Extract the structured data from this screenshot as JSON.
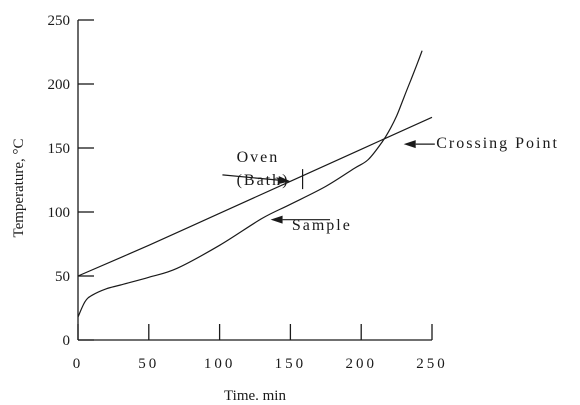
{
  "chart_data": {
    "type": "line",
    "title": "",
    "xlabel": "Time. min",
    "ylabel": "Temperature, °C",
    "xlim": [
      0,
      250
    ],
    "ylim": [
      0,
      250
    ],
    "xticks": [
      0,
      50,
      100,
      150,
      200,
      250
    ],
    "yticks": [
      0,
      50,
      100,
      150,
      200,
      250
    ],
    "grid": false,
    "series": [
      {
        "name": "Oven (Bath)",
        "x": [
          0,
          50,
          100,
          150,
          200,
          250
        ],
        "y": [
          50,
          74,
          99,
          124,
          149,
          174
        ]
      },
      {
        "name": "Sample",
        "x": [
          0,
          5,
          10,
          20,
          30,
          50,
          70,
          100,
          130,
          150,
          175,
          195,
          205,
          215,
          220,
          225,
          230,
          235,
          240,
          243
        ],
        "y": [
          18,
          30,
          35,
          40,
          43,
          49,
          56,
          74,
          95,
          106,
          120,
          134,
          141,
          155,
          164,
          175,
          189,
          203,
          217,
          226
        ]
      }
    ],
    "annotations": [
      {
        "text": "Oven",
        "tx": 112,
        "ty": 139,
        "target": [
          150,
          124
        ],
        "from": [
          102,
          129
        ]
      },
      {
        "text": "(Bath)",
        "tx": 112,
        "ty": 121
      },
      {
        "text": "Sample",
        "tx": 151,
        "ty": 86,
        "target": [
          136,
          94
        ],
        "from": [
          178,
          94
        ]
      },
      {
        "text": "Crossing Point",
        "tx": 253,
        "ty": 150,
        "target": [
          230,
          153
        ],
        "from": [
          252,
          153
        ]
      }
    ]
  }
}
